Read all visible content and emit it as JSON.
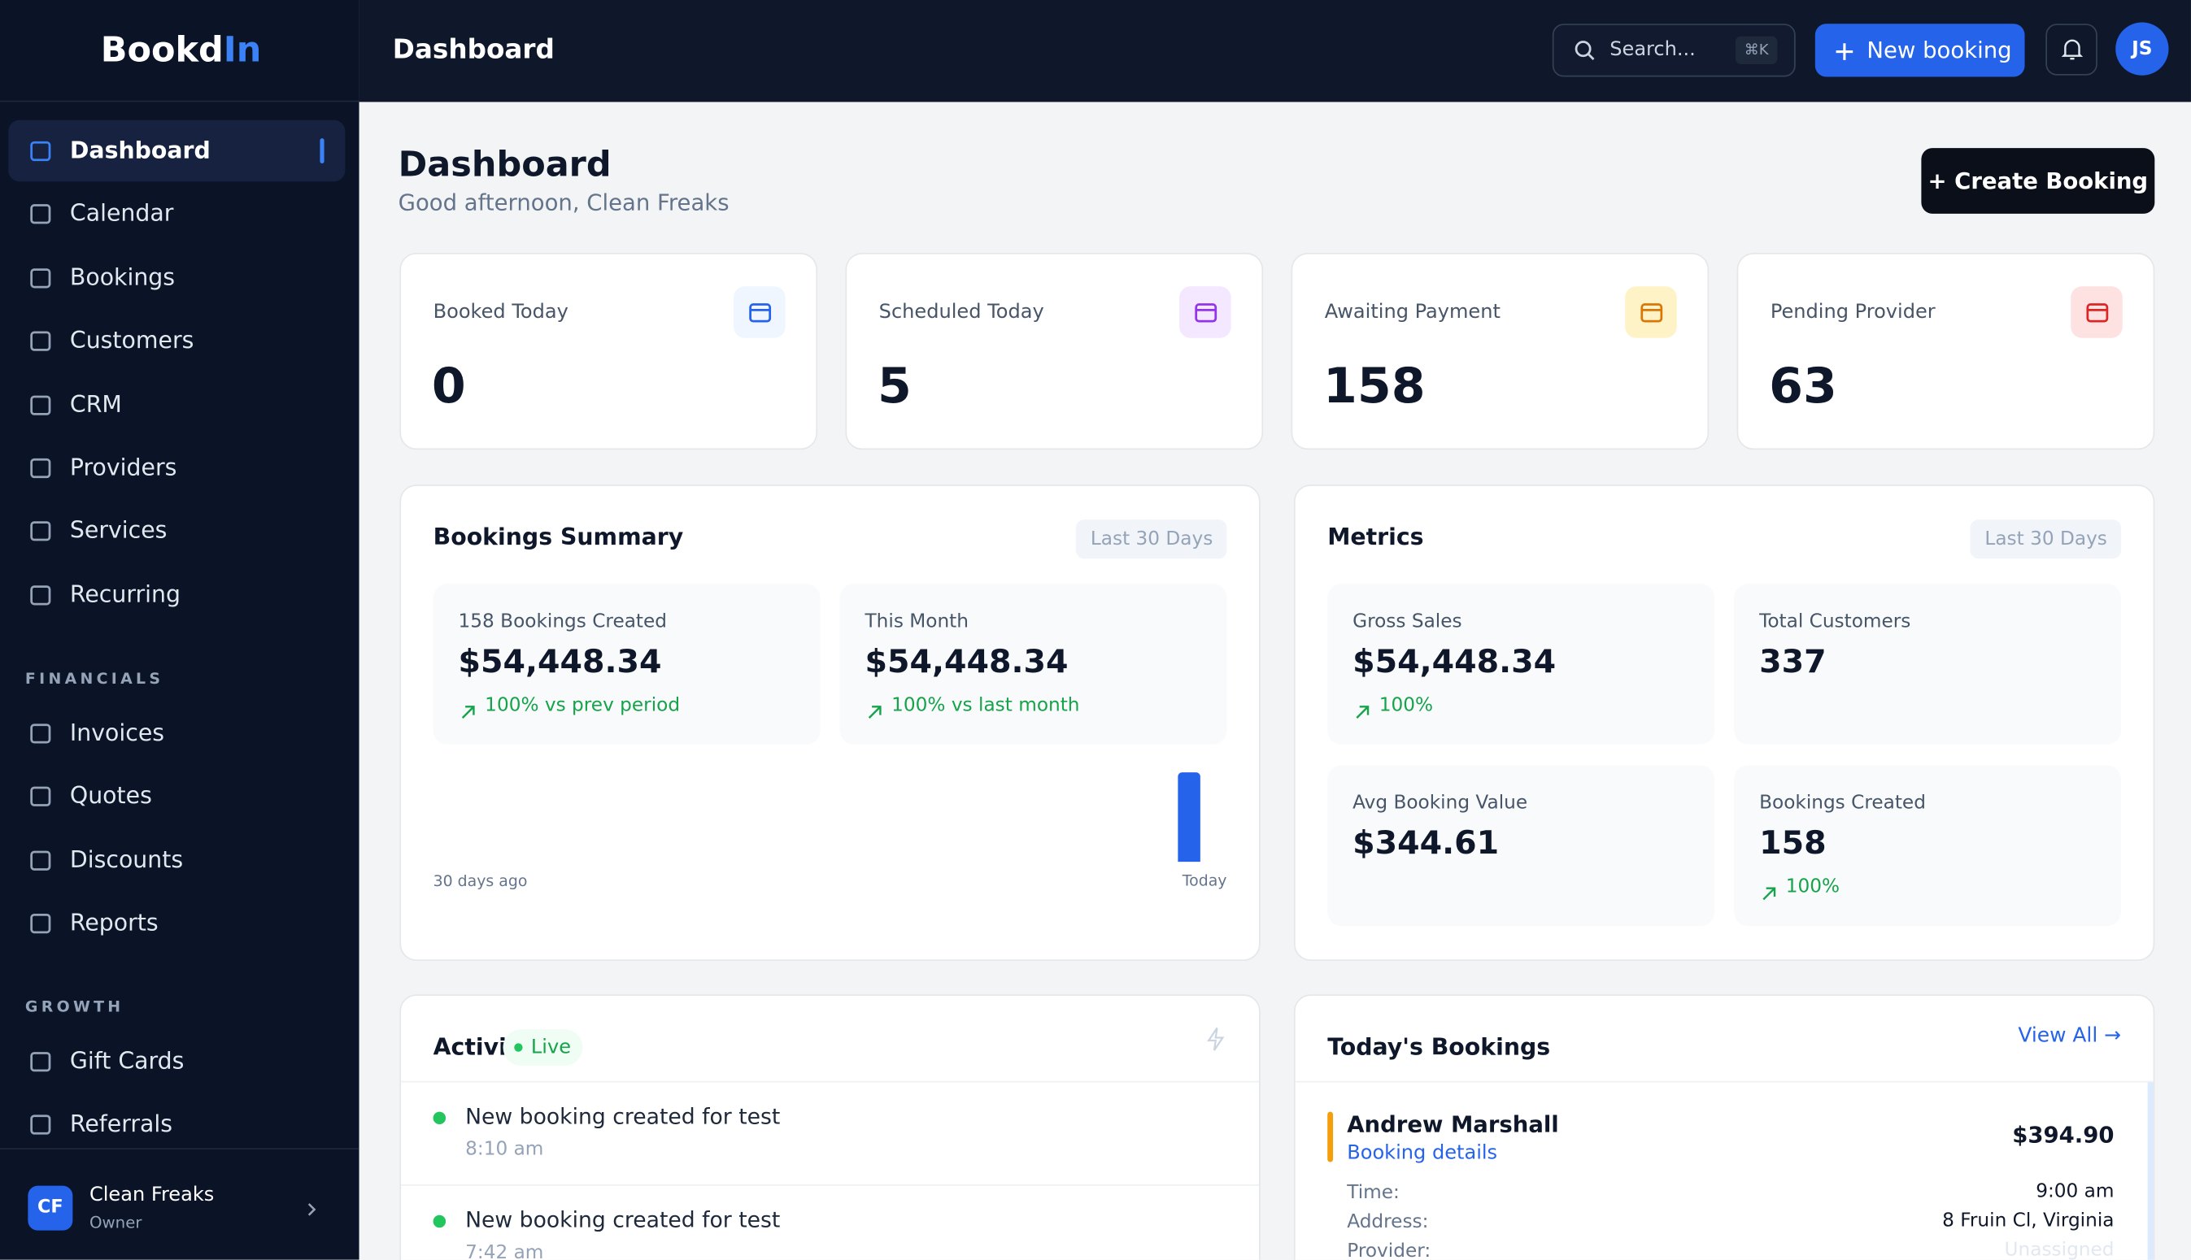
{
  "sidebar": {
    "logo": {
      "main": "Bookd",
      "accent": "In"
    },
    "nav": [
      "Dashboard",
      "Calendar",
      "Bookings",
      "Customers",
      "CRM",
      "Providers",
      "Services",
      "Recurring"
    ],
    "sections": [
      {
        "heading": "FINANCIALS",
        "items": [
          "Invoices",
          "Quotes",
          "Discounts",
          "Reports"
        ]
      },
      {
        "heading": "GROWTH",
        "items": [
          "Gift Cards",
          "Referrals"
        ]
      }
    ],
    "user": {
      "initials": "CF",
      "name": "Clean Freaks",
      "role": "Owner"
    }
  },
  "topbar": {
    "title": "Dashboard",
    "search": "Search...",
    "shortcut": "⌘K",
    "new_booking": "New booking",
    "avatar": "JS"
  },
  "header": {
    "title": "Dashboard",
    "subtitle": "Good afternoon, Clean Freaks",
    "button": "+ Create Booking"
  },
  "stats": [
    {
      "label": "Booked Today",
      "value": "0"
    },
    {
      "label": "Scheduled Today",
      "value": "5"
    },
    {
      "label": "Awaiting Payment",
      "value": "158"
    },
    {
      "label": "Pending Provider",
      "value": "63"
    }
  ],
  "bookings_summary": {
    "title": "Bookings Summary",
    "range": "Last 30 Days",
    "cards": [
      {
        "label": "158 Bookings Created",
        "value": "$54,448.34",
        "change": "100% vs prev period"
      },
      {
        "label": "This Month",
        "value": "$54,448.34",
        "change": "100% vs last month"
      }
    ],
    "axis_start": "30 days ago",
    "axis_end": "Today"
  },
  "metrics": {
    "title": "Metrics",
    "range": "Last 30 Days",
    "cards": [
      {
        "label": "Gross Sales",
        "value": "$54,448.34",
        "change": "100%"
      },
      {
        "label": "Total Customers",
        "value": "337"
      },
      {
        "label": "Avg Booking Value",
        "value": "$344.61"
      },
      {
        "label": "Bookings Created",
        "value": "158",
        "change": "100%"
      }
    ]
  },
  "activity": {
    "title": "Activity",
    "badge": "Live",
    "items": [
      {
        "text": "New booking created for test",
        "time": "8:10 am"
      },
      {
        "text": "New booking created for test",
        "time": "7:42 am"
      }
    ]
  },
  "todays_bookings": {
    "title": "Today's Bookings",
    "link": "View All →",
    "booking": {
      "name": "Andrew Marshall",
      "link": "Booking details",
      "amount": "$394.90",
      "fields": [
        {
          "label": "Time:",
          "value": "9:00 am"
        },
        {
          "label": "Address:",
          "value": "8 Fruin Cl, Virginia"
        },
        {
          "label": "Provider:",
          "value": "Unassigned"
        }
      ]
    }
  }
}
